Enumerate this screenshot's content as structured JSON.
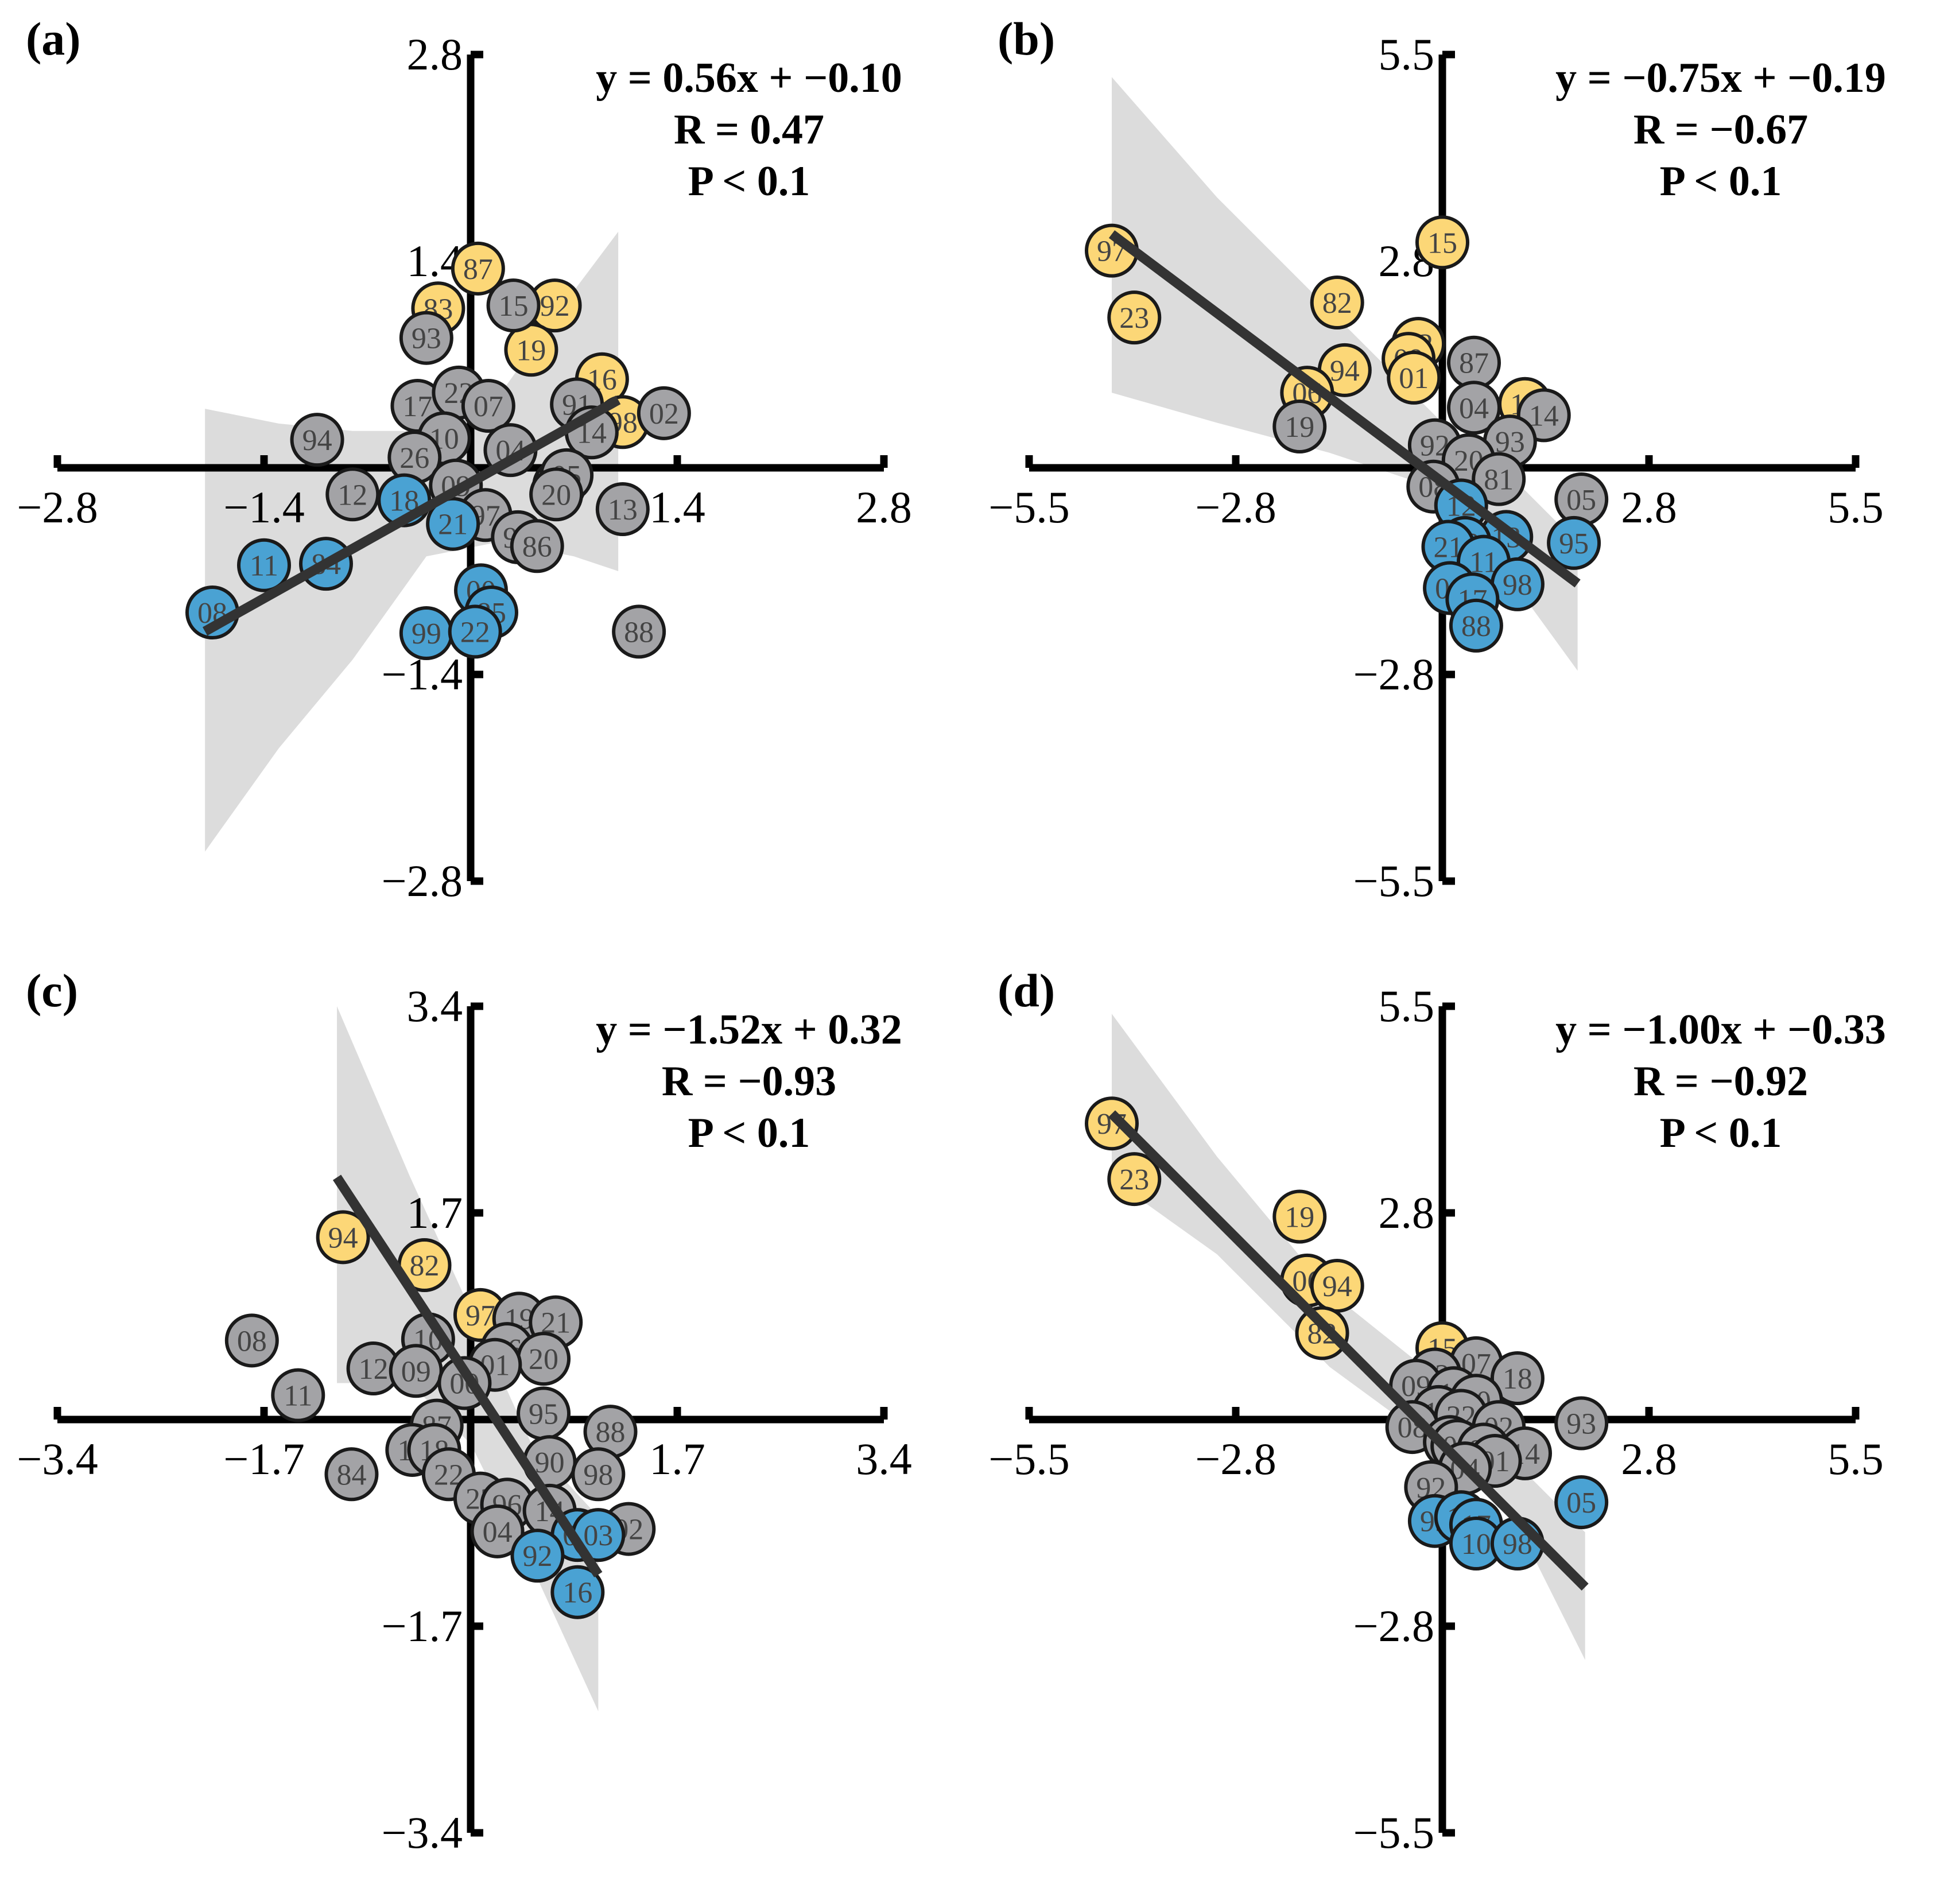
{
  "colors": {
    "high": "#fcd777",
    "low": "#4aa2d3",
    "mid": "#a3a3a6",
    "ci": "#d0d0d0",
    "fit": "#333333"
  },
  "chart_data": [
    {
      "type": "scatter",
      "panel": "(a)",
      "xlim": [
        -2.8,
        2.8
      ],
      "ylim": [
        -2.8,
        2.8
      ],
      "xticks": [
        "−2.8",
        "−1.4",
        "1.4",
        "2.8"
      ],
      "yticks": [
        "2.8",
        "1.4",
        "−1.4",
        "−2.8"
      ],
      "equation": [
        "y = 0.56x + −0.10",
        "R = 0.47",
        "P < 0.1"
      ],
      "fit": {
        "slope": 0.56,
        "intercept": -0.1,
        "x_range": [
          -1.8,
          1.0
        ]
      },
      "ci_band": {
        "x": [
          -1.8,
          -1.3,
          -0.8,
          -0.3,
          0.2,
          0.7,
          1.0
        ],
        "upper": [
          0.4,
          0.3,
          0.25,
          0.25,
          0.5,
          1.2,
          1.6
        ],
        "lower": [
          -2.6,
          -1.9,
          -1.3,
          -0.6,
          -0.5,
          -0.6,
          -0.7
        ]
      },
      "points": [
        {
          "label": "87",
          "x": 0.05,
          "y": 1.35,
          "group": "high"
        },
        {
          "label": "83",
          "x": -0.22,
          "y": 1.08,
          "group": "high"
        },
        {
          "label": "92",
          "x": 0.57,
          "y": 1.1,
          "group": "high"
        },
        {
          "label": "19",
          "x": 0.41,
          "y": 0.8,
          "group": "high"
        },
        {
          "label": "16",
          "x": 0.89,
          "y": 0.6,
          "group": "high"
        },
        {
          "label": "98",
          "x": 1.03,
          "y": 0.31,
          "group": "high"
        },
        {
          "label": "15",
          "x": 0.29,
          "y": 1.1,
          "group": "mid"
        },
        {
          "label": "93",
          "x": -0.3,
          "y": 0.88,
          "group": "mid"
        },
        {
          "label": "94",
          "x": -1.04,
          "y": 0.19,
          "group": "mid"
        },
        {
          "label": "17",
          "x": -0.36,
          "y": 0.42,
          "group": "mid"
        },
        {
          "label": "22",
          "x": -0.08,
          "y": 0.51,
          "group": "mid"
        },
        {
          "label": "07",
          "x": 0.12,
          "y": 0.42,
          "group": "mid"
        },
        {
          "label": "10",
          "x": -0.18,
          "y": 0.2,
          "group": "mid"
        },
        {
          "label": "26",
          "x": -0.38,
          "y": 0.07,
          "group": "mid"
        },
        {
          "label": "04",
          "x": 0.27,
          "y": 0.12,
          "group": "mid"
        },
        {
          "label": "91",
          "x": 0.72,
          "y": 0.43,
          "group": "mid"
        },
        {
          "label": "14",
          "x": 0.82,
          "y": 0.24,
          "group": "mid"
        },
        {
          "label": "02",
          "x": 1.31,
          "y": 0.37,
          "group": "mid"
        },
        {
          "label": "12",
          "x": -0.8,
          "y": -0.18,
          "group": "mid"
        },
        {
          "label": "09",
          "x": -0.1,
          "y": -0.12,
          "group": "mid"
        },
        {
          "label": "06",
          "x": 0.6,
          "y": -0.12,
          "group": "mid"
        },
        {
          "label": "05",
          "x": 0.65,
          "y": -0.05,
          "group": "mid"
        },
        {
          "label": "20",
          "x": 0.58,
          "y": -0.18,
          "group": "mid"
        },
        {
          "label": "13",
          "x": 1.03,
          "y": -0.28,
          "group": "mid"
        },
        {
          "label": "97",
          "x": 0.1,
          "y": -0.32,
          "group": "mid"
        },
        {
          "label": "96",
          "x": 0.32,
          "y": -0.47,
          "group": "mid"
        },
        {
          "label": "86",
          "x": 0.45,
          "y": -0.53,
          "group": "mid"
        },
        {
          "label": "88",
          "x": 1.14,
          "y": -1.11,
          "group": "mid"
        },
        {
          "label": "18",
          "x": -0.45,
          "y": -0.22,
          "group": "low"
        },
        {
          "label": "21",
          "x": -0.12,
          "y": -0.38,
          "group": "low"
        },
        {
          "label": "11",
          "x": -1.4,
          "y": -0.66,
          "group": "low"
        },
        {
          "label": "84",
          "x": -0.98,
          "y": -0.65,
          "group": "low"
        },
        {
          "label": "08",
          "x": -1.75,
          "y": -0.98,
          "group": "low"
        },
        {
          "label": "00",
          "x": 0.07,
          "y": -0.83,
          "group": "low"
        },
        {
          "label": "85",
          "x": 0.14,
          "y": -0.98,
          "group": "low"
        },
        {
          "label": "99",
          "x": -0.3,
          "y": -1.12,
          "group": "low"
        },
        {
          "label": "22",
          "x": 0.03,
          "y": -1.11,
          "group": "low"
        }
      ]
    },
    {
      "type": "scatter",
      "panel": "(b)",
      "xlim": [
        -5.5,
        5.5
      ],
      "ylim": [
        -5.5,
        5.5
      ],
      "xticks": [
        "−5.5",
        "−2.8",
        "2.8",
        "5.5"
      ],
      "yticks": [
        "5.5",
        "2.8",
        "−2.8",
        "−5.5"
      ],
      "equation": [
        "y = −0.75x + −0.19",
        "R = −0.67",
        "P < 0.1"
      ],
      "fit": {
        "slope": -0.75,
        "intercept": -0.19,
        "x_range": [
          -4.4,
          1.8
        ]
      },
      "ci_band": {
        "x": [
          -4.4,
          -3.0,
          -1.5,
          0.0,
          1.0,
          1.8
        ],
        "upper": [
          5.2,
          3.6,
          2.1,
          0.6,
          -0.2,
          -1.0
        ],
        "lower": [
          1.0,
          0.6,
          0.2,
          -0.3,
          -1.6,
          -2.7
        ]
      },
      "points": [
        {
          "label": "15",
          "x": 0.0,
          "y": 3.0,
          "group": "high"
        },
        {
          "label": "97",
          "x": -4.4,
          "y": 2.89,
          "group": "high"
        },
        {
          "label": "23",
          "x": -4.1,
          "y": 2.0,
          "group": "high"
        },
        {
          "label": "82",
          "x": -1.4,
          "y": 2.2,
          "group": "high"
        },
        {
          "label": "02",
          "x": -0.32,
          "y": 1.65,
          "group": "high"
        },
        {
          "label": "09",
          "x": -0.45,
          "y": 1.45,
          "group": "high"
        },
        {
          "label": "94",
          "x": -1.3,
          "y": 1.3,
          "group": "high"
        },
        {
          "label": "01",
          "x": -0.38,
          "y": 1.2,
          "group": "high"
        },
        {
          "label": "06",
          "x": -1.8,
          "y": 1.0,
          "group": "high"
        },
        {
          "label": "18",
          "x": 1.1,
          "y": 0.85,
          "group": "high"
        },
        {
          "label": "87",
          "x": 0.42,
          "y": 1.4,
          "group": "mid"
        },
        {
          "label": "04",
          "x": 0.42,
          "y": 0.8,
          "group": "mid"
        },
        {
          "label": "14",
          "x": 1.35,
          "y": 0.7,
          "group": "mid"
        },
        {
          "label": "19",
          "x": -1.9,
          "y": 0.55,
          "group": "mid"
        },
        {
          "label": "93",
          "x": 0.9,
          "y": 0.35,
          "group": "mid"
        },
        {
          "label": "92",
          "x": -0.1,
          "y": 0.3,
          "group": "mid"
        },
        {
          "label": "20",
          "x": 0.35,
          "y": 0.1,
          "group": "mid"
        },
        {
          "label": "81",
          "x": 0.75,
          "y": -0.15,
          "group": "mid"
        },
        {
          "label": "08",
          "x": -0.12,
          "y": -0.25,
          "group": "mid"
        },
        {
          "label": "05",
          "x": 1.85,
          "y": -0.42,
          "group": "mid"
        },
        {
          "label": "12",
          "x": 0.25,
          "y": -0.5,
          "group": "low"
        },
        {
          "label": "95",
          "x": 1.75,
          "y": -1.0,
          "group": "low"
        },
        {
          "label": "13",
          "x": 0.85,
          "y": -0.92,
          "group": "low"
        },
        {
          "label": "22",
          "x": 0.3,
          "y": -1.0,
          "group": "low"
        },
        {
          "label": "21",
          "x": 0.08,
          "y": -1.05,
          "group": "low"
        },
        {
          "label": "11",
          "x": 0.55,
          "y": -1.25,
          "group": "low"
        },
        {
          "label": "98",
          "x": 1.0,
          "y": -1.55,
          "group": "low"
        },
        {
          "label": "00",
          "x": 0.1,
          "y": -1.6,
          "group": "low"
        },
        {
          "label": "17",
          "x": 0.4,
          "y": -1.75,
          "group": "low"
        },
        {
          "label": "88",
          "x": 0.45,
          "y": -2.1,
          "group": "low"
        }
      ]
    },
    {
      "type": "scatter",
      "panel": "(c)",
      "xlim": [
        -3.4,
        3.4
      ],
      "ylim": [
        -3.4,
        3.4
      ],
      "xticks": [
        "−3.4",
        "−1.7",
        "1.7",
        "3.4"
      ],
      "yticks": [
        "3.4",
        "1.7",
        "−1.7",
        "−3.4"
      ],
      "equation": [
        "y = −1.52x + 0.32",
        "R = −0.93",
        "P < 0.1"
      ],
      "fit": {
        "slope": -1.52,
        "intercept": 0.32,
        "x_range": [
          -1.1,
          1.05
        ]
      },
      "ci_band": {
        "x": [
          -1.1,
          -0.5,
          0.0,
          0.5,
          1.05
        ],
        "upper": [
          3.4,
          2.0,
          0.9,
          -0.2,
          -0.8
        ],
        "lower": [
          0.3,
          0.3,
          -0.2,
          -1.2,
          -2.4
        ]
      },
      "points": [
        {
          "label": "94",
          "x": -1.05,
          "y": 1.5,
          "group": "high"
        },
        {
          "label": "82",
          "x": -0.38,
          "y": 1.27,
          "group": "high"
        },
        {
          "label": "97",
          "x": 0.08,
          "y": 0.86,
          "group": "high"
        },
        {
          "label": "19",
          "x": 0.4,
          "y": 0.83,
          "group": "mid"
        },
        {
          "label": "21",
          "x": 0.7,
          "y": 0.8,
          "group": "mid"
        },
        {
          "label": "08",
          "x": -1.8,
          "y": 0.65,
          "group": "mid"
        },
        {
          "label": "10",
          "x": -0.35,
          "y": 0.66,
          "group": "mid"
        },
        {
          "label": "86",
          "x": 0.3,
          "y": 0.58,
          "group": "mid"
        },
        {
          "label": "20",
          "x": 0.6,
          "y": 0.5,
          "group": "mid"
        },
        {
          "label": "12",
          "x": -0.8,
          "y": 0.42,
          "group": "mid"
        },
        {
          "label": "09",
          "x": -0.45,
          "y": 0.4,
          "group": "mid"
        },
        {
          "label": "01",
          "x": 0.2,
          "y": 0.45,
          "group": "mid"
        },
        {
          "label": "00",
          "x": -0.05,
          "y": 0.3,
          "group": "mid"
        },
        {
          "label": "11",
          "x": -1.42,
          "y": 0.2,
          "group": "mid"
        },
        {
          "label": "95",
          "x": 0.6,
          "y": 0.05,
          "group": "mid"
        },
        {
          "label": "88",
          "x": 1.15,
          "y": -0.1,
          "group": "mid"
        },
        {
          "label": "87",
          "x": -0.28,
          "y": -0.05,
          "group": "mid"
        },
        {
          "label": "13",
          "x": -0.48,
          "y": -0.25,
          "group": "mid"
        },
        {
          "label": "18",
          "x": -0.3,
          "y": -0.25,
          "group": "mid"
        },
        {
          "label": "84",
          "x": -0.98,
          "y": -0.45,
          "group": "mid"
        },
        {
          "label": "90",
          "x": 0.65,
          "y": -0.35,
          "group": "mid"
        },
        {
          "label": "98",
          "x": 1.05,
          "y": -0.45,
          "group": "mid"
        },
        {
          "label": "22",
          "x": -0.18,
          "y": -0.45,
          "group": "mid"
        },
        {
          "label": "23",
          "x": 0.08,
          "y": -0.65,
          "group": "mid"
        },
        {
          "label": "96",
          "x": 0.3,
          "y": -0.7,
          "group": "mid"
        },
        {
          "label": "14",
          "x": 0.65,
          "y": -0.75,
          "group": "mid"
        },
        {
          "label": "02",
          "x": 1.3,
          "y": -0.9,
          "group": "mid"
        },
        {
          "label": "04",
          "x": 0.22,
          "y": -0.92,
          "group": "mid"
        },
        {
          "label": "05",
          "x": 0.88,
          "y": -0.95,
          "group": "low"
        },
        {
          "label": "03",
          "x": 1.05,
          "y": -0.95,
          "group": "low"
        },
        {
          "label": "92",
          "x": 0.55,
          "y": -1.12,
          "group": "low"
        },
        {
          "label": "16",
          "x": 0.88,
          "y": -1.42,
          "group": "low"
        }
      ]
    },
    {
      "type": "scatter",
      "panel": "(d)",
      "xlim": [
        -5.5,
        5.5
      ],
      "ylim": [
        -5.5,
        5.5
      ],
      "xticks": [
        "−5.5",
        "−2.8",
        "2.8",
        "5.5"
      ],
      "yticks": [
        "5.5",
        "2.8",
        "−2.8",
        "−5.5"
      ],
      "equation": [
        "y = −1.00x + −0.33",
        "R = −0.92",
        "P < 0.1"
      ],
      "fit": {
        "slope": -1.0,
        "intercept": -0.33,
        "x_range": [
          -4.4,
          1.9
        ]
      },
      "ci_band": {
        "x": [
          -4.4,
          -3.0,
          -1.5,
          0.0,
          1.0,
          1.9
        ],
        "upper": [
          5.4,
          3.5,
          1.7,
          0.5,
          -0.6,
          -1.5
        ],
        "lower": [
          3.2,
          2.2,
          0.7,
          -0.4,
          -1.4,
          -3.2
        ]
      },
      "points": [
        {
          "label": "97",
          "x": -4.4,
          "y": 3.94,
          "group": "high"
        },
        {
          "label": "23",
          "x": -4.1,
          "y": 3.2,
          "group": "high"
        },
        {
          "label": "19",
          "x": -1.9,
          "y": 2.7,
          "group": "high"
        },
        {
          "label": "06",
          "x": -1.8,
          "y": 1.85,
          "group": "high"
        },
        {
          "label": "94",
          "x": -1.4,
          "y": 1.78,
          "group": "high"
        },
        {
          "label": "82",
          "x": -1.6,
          "y": 1.15,
          "group": "high"
        },
        {
          "label": "15",
          "x": 0.0,
          "y": 0.95,
          "group": "high"
        },
        {
          "label": "07",
          "x": 0.45,
          "y": 0.75,
          "group": "mid"
        },
        {
          "label": "18",
          "x": 1.0,
          "y": 0.55,
          "group": "mid"
        },
        {
          "label": "12",
          "x": -0.1,
          "y": 0.6,
          "group": "mid"
        },
        {
          "label": "09",
          "x": -0.35,
          "y": 0.45,
          "group": "mid"
        },
        {
          "label": "16",
          "x": 0.15,
          "y": 0.35,
          "group": "mid"
        },
        {
          "label": "20",
          "x": 0.45,
          "y": 0.25,
          "group": "mid"
        },
        {
          "label": "13",
          "x": -0.05,
          "y": 0.1,
          "group": "mid"
        },
        {
          "label": "22",
          "x": 0.25,
          "y": 0.05,
          "group": "mid"
        },
        {
          "label": "93",
          "x": 1.85,
          "y": -0.05,
          "group": "mid"
        },
        {
          "label": "08",
          "x": -0.4,
          "y": -0.1,
          "group": "mid"
        },
        {
          "label": "02",
          "x": 0.75,
          "y": -0.1,
          "group": "mid"
        },
        {
          "label": "10",
          "x": 0.1,
          "y": -0.3,
          "group": "mid"
        },
        {
          "label": "00",
          "x": 0.2,
          "y": -0.35,
          "group": "mid"
        },
        {
          "label": "87",
          "x": 0.55,
          "y": -0.4,
          "group": "mid"
        },
        {
          "label": "14",
          "x": 1.1,
          "y": -0.45,
          "group": "mid"
        },
        {
          "label": "01",
          "x": 0.7,
          "y": -0.55,
          "group": "mid"
        },
        {
          "label": "04",
          "x": 0.3,
          "y": -0.65,
          "group": "mid"
        },
        {
          "label": "92",
          "x": -0.15,
          "y": -0.9,
          "group": "mid"
        },
        {
          "label": "05",
          "x": 1.85,
          "y": -1.1,
          "group": "low"
        },
        {
          "label": "95",
          "x": -0.1,
          "y": -1.35,
          "group": "low"
        },
        {
          "label": "11",
          "x": 0.25,
          "y": -1.3,
          "group": "low"
        },
        {
          "label": "17",
          "x": 0.45,
          "y": -1.4,
          "group": "low"
        },
        {
          "label": "10",
          "x": 0.45,
          "y": -1.65,
          "group": "low"
        },
        {
          "label": "98",
          "x": 1.0,
          "y": -1.65,
          "group": "low"
        }
      ]
    }
  ]
}
